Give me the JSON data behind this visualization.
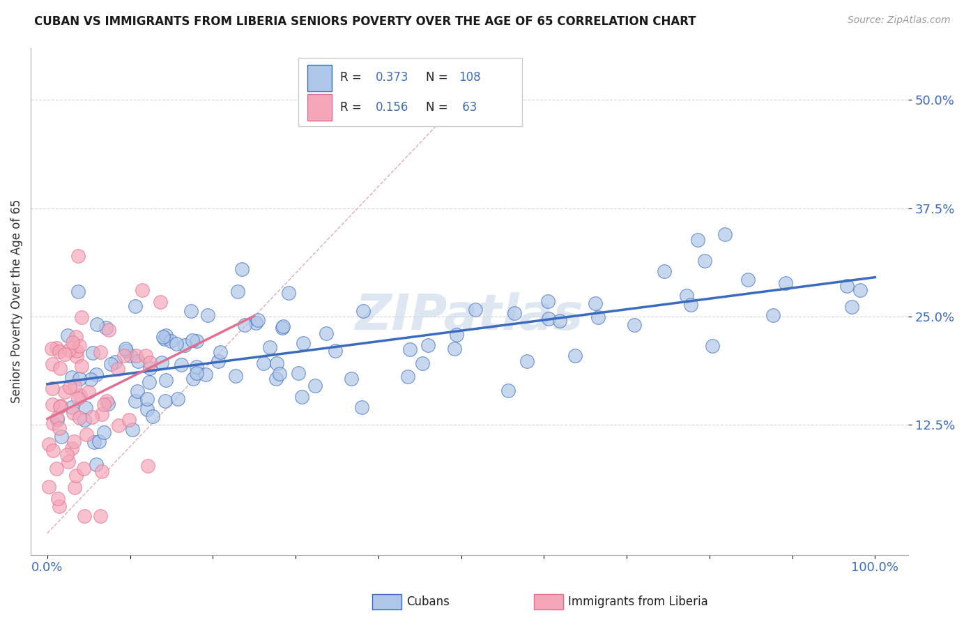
{
  "title": "CUBAN VS IMMIGRANTS FROM LIBERIA SENIORS POVERTY OVER THE AGE OF 65 CORRELATION CHART",
  "source": "Source: ZipAtlas.com",
  "ylabel": "Seniors Poverty Over the Age of 65",
  "cubans_color": "#aec6e8",
  "liberia_color": "#f4a7b9",
  "trend_cubans_color": "#3a6bbf",
  "trend_liberia_color": "#e07090",
  "diag_color": "#e0a0b0",
  "R_cubans": 0.373,
  "N_cubans": 108,
  "R_liberia": 0.156,
  "N_liberia": 63,
  "watermark": "ZIPatlas",
  "legend_label_cubans": "Cubans",
  "legend_label_liberia": "Immigrants from Liberia",
  "background_color": "#ffffff",
  "grid_color": "#d0d0d0",
  "label_color": "#3a6bbf"
}
